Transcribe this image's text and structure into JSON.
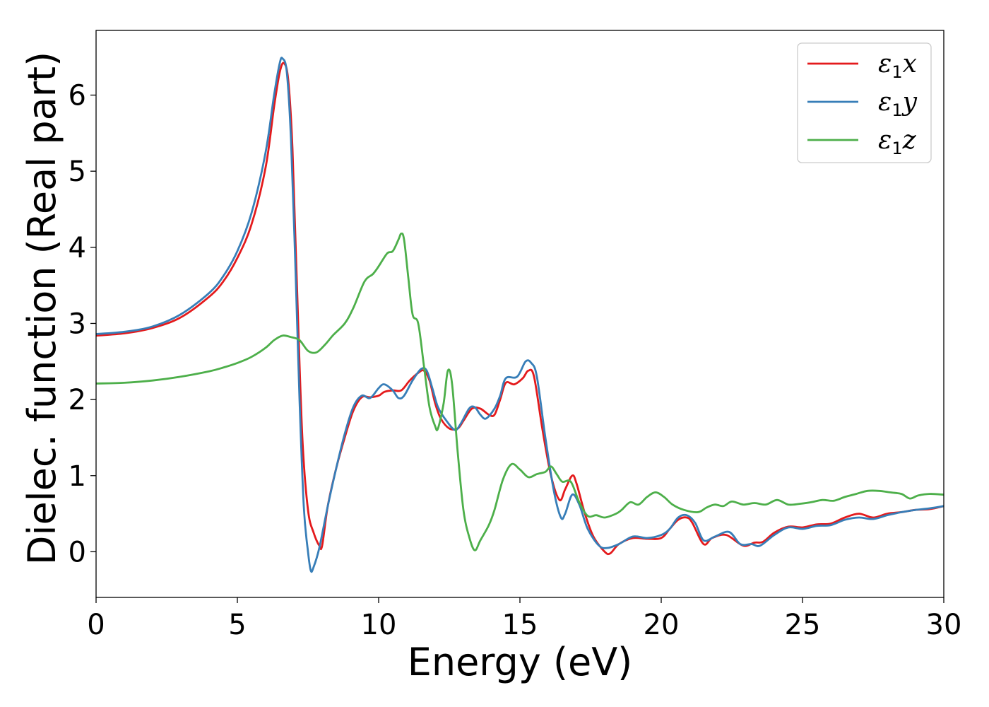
{
  "chart_data": {
    "type": "line",
    "title": "",
    "xlabel": "Energy (eV)",
    "ylabel": "Dielec. function (Real part)",
    "xlim": [
      0,
      30
    ],
    "ylim": [
      -0.6,
      6.85
    ],
    "xticks": [
      0,
      5,
      10,
      15,
      20,
      25,
      30
    ],
    "yticks": [
      0,
      1,
      2,
      3,
      4,
      5,
      6
    ],
    "grid": false,
    "legend_position": "top-right",
    "series": [
      {
        "name": "ε₁x",
        "legend_symbol": "ε",
        "legend_sub": "1",
        "legend_var": "x",
        "color": "#e41a1c",
        "points": [
          [
            0,
            2.84
          ],
          [
            1,
            2.87
          ],
          [
            2,
            2.94
          ],
          [
            3,
            3.08
          ],
          [
            4,
            3.35
          ],
          [
            4.5,
            3.55
          ],
          [
            5,
            3.86
          ],
          [
            5.5,
            4.3
          ],
          [
            6,
            5.05
          ],
          [
            6.3,
            5.85
          ],
          [
            6.5,
            6.3
          ],
          [
            6.65,
            6.42
          ],
          [
            6.8,
            6.2
          ],
          [
            6.95,
            5.3
          ],
          [
            7.1,
            3.6
          ],
          [
            7.3,
            1.5
          ],
          [
            7.5,
            0.55
          ],
          [
            7.7,
            0.25
          ],
          [
            7.9,
            0.08
          ],
          [
            8.0,
            0.08
          ],
          [
            8.2,
            0.6
          ],
          [
            8.5,
            1.1
          ],
          [
            8.8,
            1.5
          ],
          [
            9.1,
            1.85
          ],
          [
            9.4,
            2.03
          ],
          [
            9.7,
            2.03
          ],
          [
            10,
            2.05
          ],
          [
            10.2,
            2.1
          ],
          [
            10.5,
            2.12
          ],
          [
            10.8,
            2.12
          ],
          [
            11.1,
            2.25
          ],
          [
            11.4,
            2.35
          ],
          [
            11.6,
            2.38
          ],
          [
            11.8,
            2.25
          ],
          [
            12.0,
            1.95
          ],
          [
            12.2,
            1.75
          ],
          [
            12.5,
            1.62
          ],
          [
            12.8,
            1.62
          ],
          [
            13.0,
            1.72
          ],
          [
            13.3,
            1.88
          ],
          [
            13.6,
            1.88
          ],
          [
            13.9,
            1.8
          ],
          [
            14.1,
            1.8
          ],
          [
            14.3,
            2.0
          ],
          [
            14.5,
            2.22
          ],
          [
            14.8,
            2.2
          ],
          [
            15.1,
            2.28
          ],
          [
            15.3,
            2.38
          ],
          [
            15.5,
            2.3
          ],
          [
            15.8,
            1.6
          ],
          [
            16.1,
            1.0
          ],
          [
            16.4,
            0.68
          ],
          [
            16.6,
            0.82
          ],
          [
            16.85,
            1.0
          ],
          [
            17.0,
            0.9
          ],
          [
            17.3,
            0.5
          ],
          [
            17.6,
            0.2
          ],
          [
            18.0,
            0.0
          ],
          [
            18.2,
            -0.02
          ],
          [
            18.5,
            0.1
          ],
          [
            19.0,
            0.18
          ],
          [
            19.5,
            0.17
          ],
          [
            20.0,
            0.18
          ],
          [
            20.3,
            0.3
          ],
          [
            20.6,
            0.42
          ],
          [
            20.9,
            0.45
          ],
          [
            21.1,
            0.38
          ],
          [
            21.5,
            0.1
          ],
          [
            21.8,
            0.18
          ],
          [
            22.3,
            0.22
          ],
          [
            22.9,
            0.08
          ],
          [
            23.3,
            0.12
          ],
          [
            23.6,
            0.13
          ],
          [
            24.0,
            0.25
          ],
          [
            24.5,
            0.33
          ],
          [
            25.0,
            0.32
          ],
          [
            25.5,
            0.36
          ],
          [
            26.0,
            0.37
          ],
          [
            26.5,
            0.45
          ],
          [
            27.0,
            0.5
          ],
          [
            27.5,
            0.45
          ],
          [
            28.0,
            0.5
          ],
          [
            28.5,
            0.52
          ],
          [
            29.0,
            0.55
          ],
          [
            29.5,
            0.56
          ],
          [
            30,
            0.6
          ]
        ]
      },
      {
        "name": "ε₁y",
        "legend_symbol": "ε",
        "legend_sub": "1",
        "legend_var": "y",
        "color": "#377eb8",
        "points": [
          [
            0,
            2.86
          ],
          [
            1,
            2.89
          ],
          [
            2,
            2.96
          ],
          [
            3,
            3.12
          ],
          [
            4,
            3.4
          ],
          [
            4.5,
            3.62
          ],
          [
            5,
            3.95
          ],
          [
            5.5,
            4.45
          ],
          [
            6,
            5.25
          ],
          [
            6.3,
            6.0
          ],
          [
            6.5,
            6.42
          ],
          [
            6.6,
            6.48
          ],
          [
            6.75,
            6.3
          ],
          [
            6.9,
            5.4
          ],
          [
            7.05,
            3.8
          ],
          [
            7.2,
            2.0
          ],
          [
            7.35,
            0.6
          ],
          [
            7.5,
            0.0
          ],
          [
            7.6,
            -0.25
          ],
          [
            7.7,
            -0.2
          ],
          [
            7.9,
            0.05
          ],
          [
            8.2,
            0.6
          ],
          [
            8.5,
            1.1
          ],
          [
            8.8,
            1.55
          ],
          [
            9.1,
            1.9
          ],
          [
            9.4,
            2.05
          ],
          [
            9.7,
            2.02
          ],
          [
            10.0,
            2.15
          ],
          [
            10.2,
            2.2
          ],
          [
            10.5,
            2.12
          ],
          [
            10.7,
            2.02
          ],
          [
            10.9,
            2.05
          ],
          [
            11.2,
            2.25
          ],
          [
            11.5,
            2.4
          ],
          [
            11.7,
            2.38
          ],
          [
            11.9,
            2.15
          ],
          [
            12.1,
            1.9
          ],
          [
            12.4,
            1.72
          ],
          [
            12.7,
            1.6
          ],
          [
            12.9,
            1.68
          ],
          [
            13.2,
            1.88
          ],
          [
            13.4,
            1.9
          ],
          [
            13.6,
            1.8
          ],
          [
            13.8,
            1.75
          ],
          [
            14.1,
            1.88
          ],
          [
            14.3,
            2.05
          ],
          [
            14.5,
            2.28
          ],
          [
            14.9,
            2.3
          ],
          [
            15.2,
            2.5
          ],
          [
            15.4,
            2.48
          ],
          [
            15.6,
            2.3
          ],
          [
            15.9,
            1.5
          ],
          [
            16.2,
            0.8
          ],
          [
            16.45,
            0.45
          ],
          [
            16.6,
            0.5
          ],
          [
            16.85,
            0.75
          ],
          [
            17.1,
            0.62
          ],
          [
            17.4,
            0.3
          ],
          [
            17.8,
            0.08
          ],
          [
            18.1,
            0.05
          ],
          [
            18.5,
            0.1
          ],
          [
            19.0,
            0.2
          ],
          [
            19.5,
            0.18
          ],
          [
            20.0,
            0.22
          ],
          [
            20.3,
            0.3
          ],
          [
            20.6,
            0.45
          ],
          [
            20.9,
            0.48
          ],
          [
            21.2,
            0.38
          ],
          [
            21.5,
            0.15
          ],
          [
            21.9,
            0.2
          ],
          [
            22.4,
            0.26
          ],
          [
            22.8,
            0.1
          ],
          [
            23.2,
            0.1
          ],
          [
            23.5,
            0.08
          ],
          [
            24.0,
            0.22
          ],
          [
            24.5,
            0.32
          ],
          [
            25.0,
            0.3
          ],
          [
            25.5,
            0.34
          ],
          [
            26.0,
            0.35
          ],
          [
            26.5,
            0.42
          ],
          [
            27.0,
            0.45
          ],
          [
            27.5,
            0.43
          ],
          [
            28.0,
            0.48
          ],
          [
            28.5,
            0.52
          ],
          [
            29.0,
            0.55
          ],
          [
            29.5,
            0.57
          ],
          [
            30,
            0.6
          ]
        ]
      },
      {
        "name": "ε₁z",
        "legend_symbol": "ε",
        "legend_sub": "1",
        "legend_var": "z",
        "color": "#4daf4a",
        "points": [
          [
            0,
            2.21
          ],
          [
            1,
            2.22
          ],
          [
            2,
            2.25
          ],
          [
            3,
            2.3
          ],
          [
            4,
            2.37
          ],
          [
            4.5,
            2.42
          ],
          [
            5,
            2.48
          ],
          [
            5.5,
            2.56
          ],
          [
            6,
            2.68
          ],
          [
            6.3,
            2.78
          ],
          [
            6.6,
            2.84
          ],
          [
            6.9,
            2.82
          ],
          [
            7.2,
            2.78
          ],
          [
            7.5,
            2.64
          ],
          [
            7.8,
            2.62
          ],
          [
            8.1,
            2.72
          ],
          [
            8.4,
            2.85
          ],
          [
            8.8,
            3.0
          ],
          [
            9.1,
            3.2
          ],
          [
            9.5,
            3.55
          ],
          [
            9.8,
            3.65
          ],
          [
            10.0,
            3.75
          ],
          [
            10.3,
            3.92
          ],
          [
            10.5,
            3.95
          ],
          [
            10.7,
            4.1
          ],
          [
            10.8,
            4.18
          ],
          [
            10.9,
            4.1
          ],
          [
            11.05,
            3.6
          ],
          [
            11.2,
            3.12
          ],
          [
            11.4,
            3.0
          ],
          [
            11.6,
            2.45
          ],
          [
            11.8,
            1.9
          ],
          [
            12.0,
            1.65
          ],
          [
            12.1,
            1.62
          ],
          [
            12.3,
            1.95
          ],
          [
            12.45,
            2.38
          ],
          [
            12.6,
            2.2
          ],
          [
            12.8,
            1.3
          ],
          [
            13.0,
            0.55
          ],
          [
            13.2,
            0.2
          ],
          [
            13.4,
            0.02
          ],
          [
            13.6,
            0.15
          ],
          [
            13.9,
            0.35
          ],
          [
            14.1,
            0.55
          ],
          [
            14.4,
            0.95
          ],
          [
            14.7,
            1.15
          ],
          [
            15.0,
            1.08
          ],
          [
            15.3,
            0.98
          ],
          [
            15.6,
            1.02
          ],
          [
            15.9,
            1.05
          ],
          [
            16.1,
            1.12
          ],
          [
            16.3,
            1.02
          ],
          [
            16.5,
            0.92
          ],
          [
            16.8,
            0.92
          ],
          [
            17.1,
            0.65
          ],
          [
            17.4,
            0.47
          ],
          [
            17.7,
            0.48
          ],
          [
            18.0,
            0.45
          ],
          [
            18.4,
            0.5
          ],
          [
            18.6,
            0.55
          ],
          [
            18.9,
            0.65
          ],
          [
            19.2,
            0.62
          ],
          [
            19.5,
            0.72
          ],
          [
            19.8,
            0.78
          ],
          [
            20.1,
            0.72
          ],
          [
            20.4,
            0.62
          ],
          [
            20.8,
            0.55
          ],
          [
            21.3,
            0.52
          ],
          [
            21.6,
            0.58
          ],
          [
            21.9,
            0.62
          ],
          [
            22.2,
            0.6
          ],
          [
            22.5,
            0.66
          ],
          [
            22.9,
            0.62
          ],
          [
            23.3,
            0.64
          ],
          [
            23.7,
            0.62
          ],
          [
            24.1,
            0.68
          ],
          [
            24.5,
            0.62
          ],
          [
            24.9,
            0.63
          ],
          [
            25.3,
            0.65
          ],
          [
            25.7,
            0.68
          ],
          [
            26.1,
            0.67
          ],
          [
            26.5,
            0.72
          ],
          [
            26.9,
            0.76
          ],
          [
            27.3,
            0.8
          ],
          [
            27.7,
            0.8
          ],
          [
            28.1,
            0.78
          ],
          [
            28.5,
            0.76
          ],
          [
            28.8,
            0.7
          ],
          [
            29.1,
            0.74
          ],
          [
            29.5,
            0.76
          ],
          [
            30,
            0.75
          ]
        ]
      }
    ]
  }
}
